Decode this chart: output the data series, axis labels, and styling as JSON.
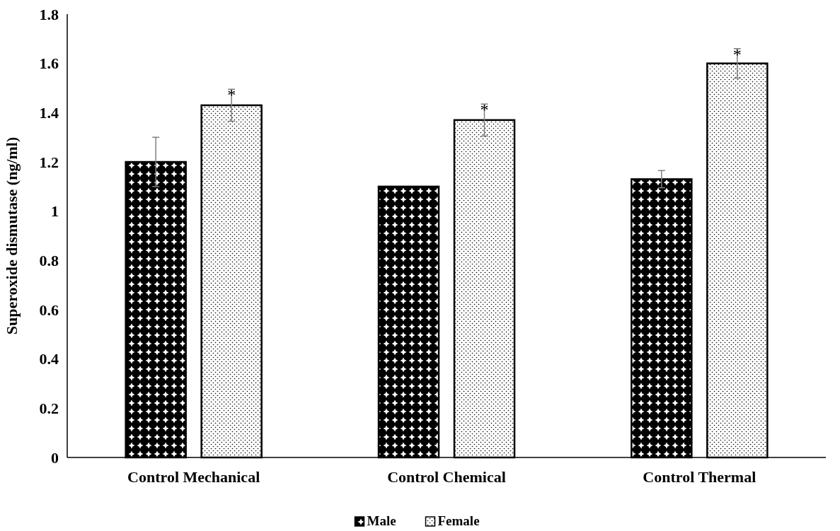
{
  "chart_data": {
    "type": "bar",
    "ylabel": "Superoxide dismutase (ng/ml)",
    "categories": [
      "Control Mechanical",
      "Control Chemical",
      "Control Thermal"
    ],
    "series": [
      {
        "name": "Male",
        "color": "#000000",
        "values": [
          1.2,
          1.1,
          1.13
        ],
        "errors": [
          0.1,
          null,
          0.035
        ]
      },
      {
        "name": "Female",
        "color": "#000000",
        "values": [
          1.43,
          1.37,
          1.6
        ],
        "errors": [
          0.065,
          0.065,
          0.06
        ]
      }
    ],
    "ylim": [
      0,
      1.8
    ],
    "yticks": [
      {
        "value": 0,
        "label": "0"
      },
      {
        "value": 0.2,
        "label": "0.2"
      },
      {
        "value": 0.4,
        "label": "0.4"
      },
      {
        "value": 0.6,
        "label": "0.6"
      },
      {
        "value": 0.8,
        "label": "0.8"
      },
      {
        "value": 1,
        "label": "1"
      },
      {
        "value": 1.2,
        "label": "1.2"
      },
      {
        "value": 1.4,
        "label": "1.4"
      },
      {
        "value": 1.6,
        "label": "1.6"
      },
      {
        "value": 1.8,
        "label": "1.8"
      }
    ],
    "grid": false,
    "legend": "bottom",
    "annotations": [
      "*",
      "*",
      "*"
    ]
  }
}
